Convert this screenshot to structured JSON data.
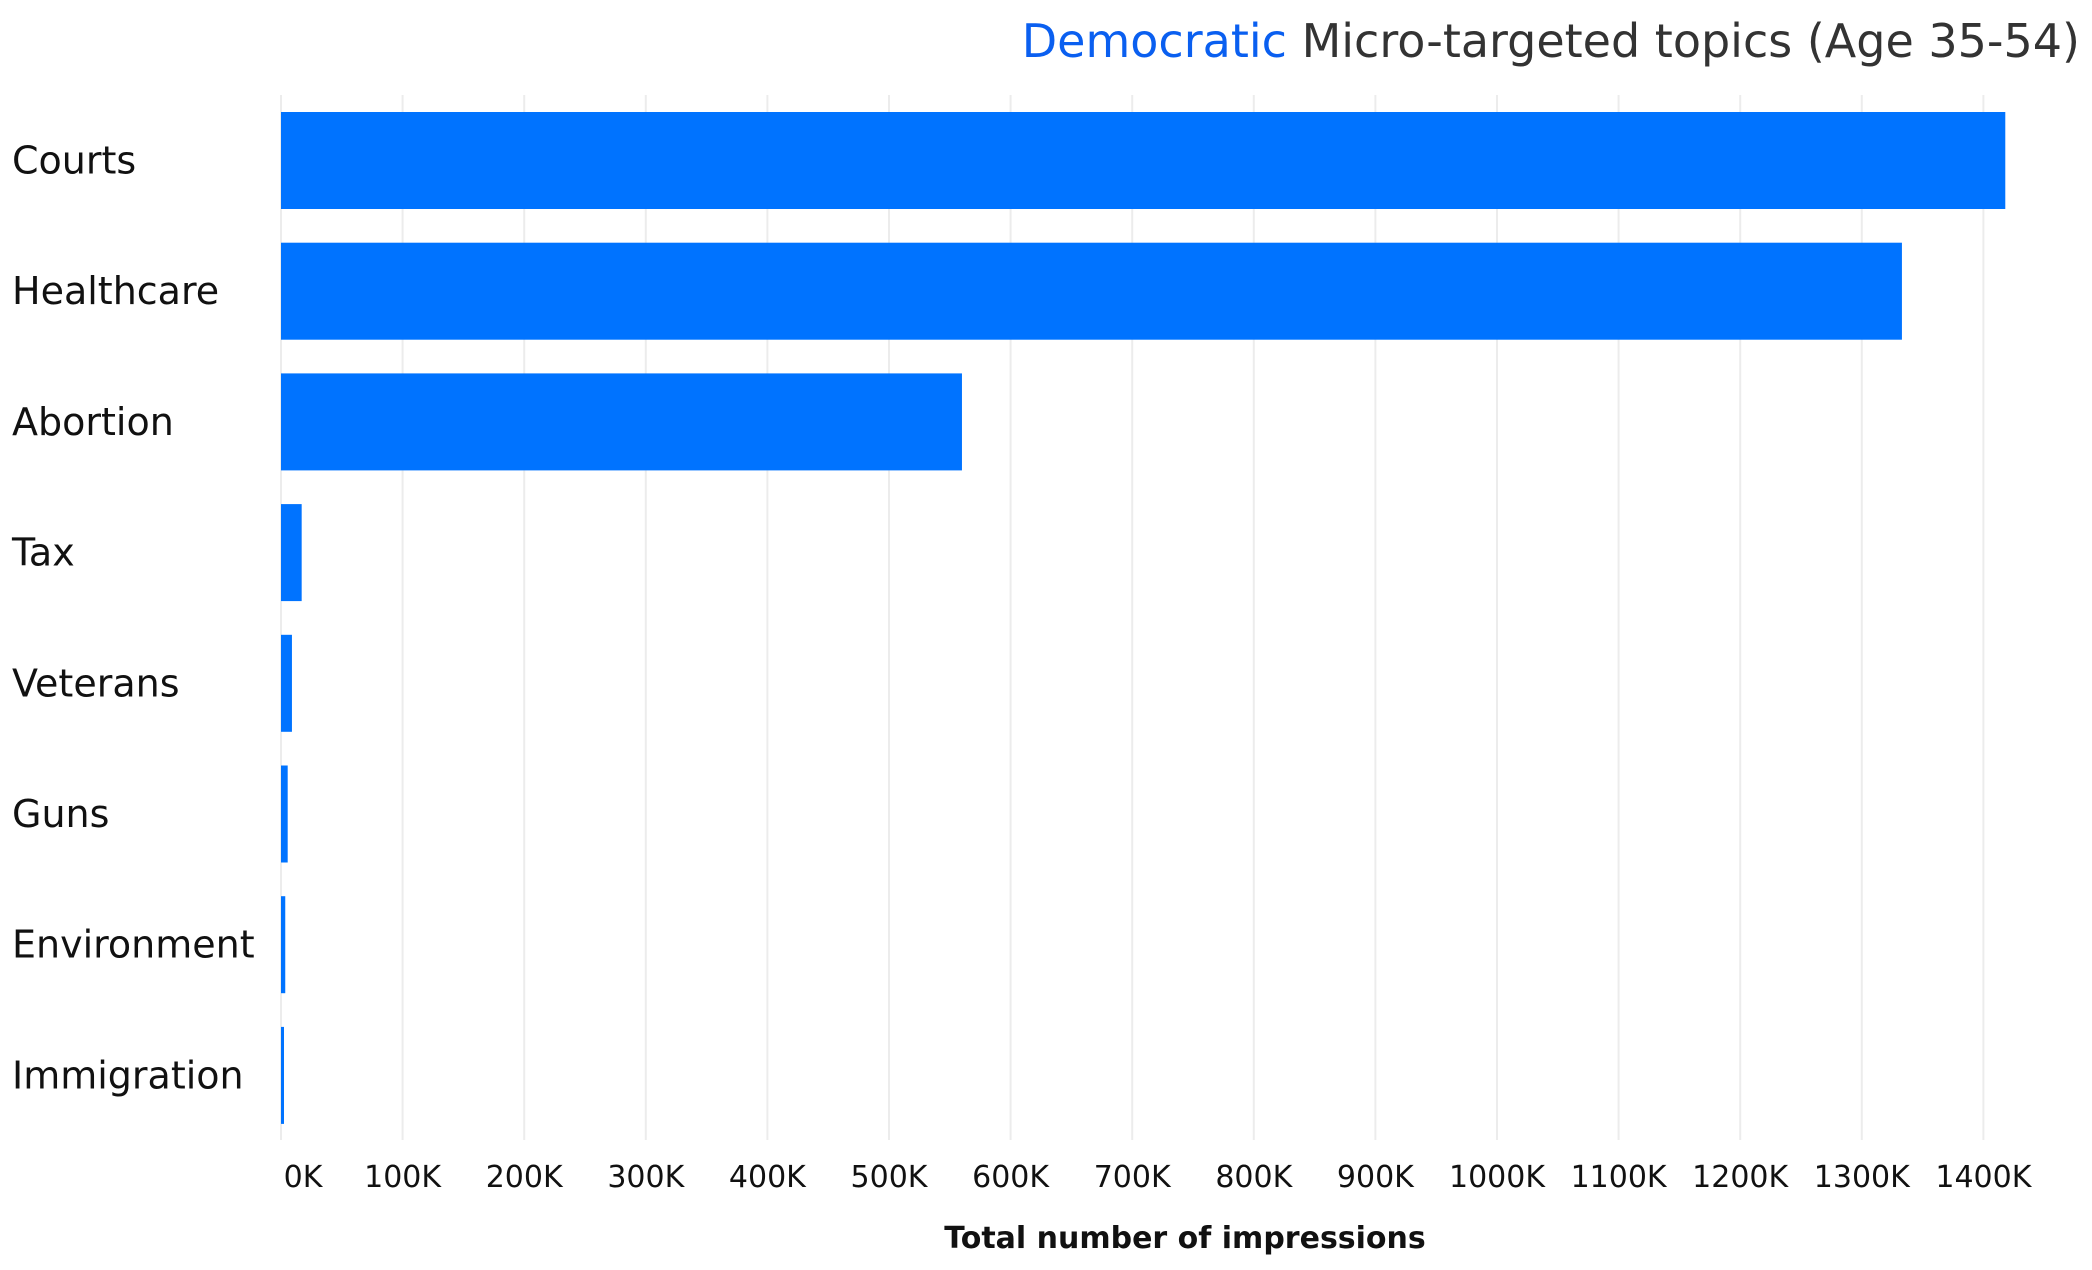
{
  "title": {
    "highlight": "Democratic",
    "rest": "Micro-targeted topics (Age 35-54)"
  },
  "colors": {
    "bar": "#0073ff",
    "title_highlight": "#0a5ff0",
    "grid": "#ececec"
  },
  "chart_data": {
    "type": "bar",
    "orientation": "horizontal",
    "categories": [
      "Courts",
      "Healthcare",
      "Abortion",
      "Tax",
      "Veterans",
      "Guns",
      "Environment",
      "Immigration"
    ],
    "values": [
      1418000,
      1333000,
      560000,
      17000,
      9000,
      5500,
      3500,
      2000
    ],
    "xlabel": "Total number of impressions",
    "ylabel": "",
    "xlim": [
      0,
      1480000
    ],
    "x_ticks": [
      0,
      100000,
      200000,
      300000,
      400000,
      500000,
      600000,
      700000,
      800000,
      900000,
      1000000,
      1100000,
      1200000,
      1300000,
      1400000
    ],
    "x_tick_labels": [
      "0K",
      "100K",
      "200K",
      "300K",
      "400K",
      "500K",
      "600K",
      "700K",
      "800K",
      "900K",
      "1000K",
      "1100K",
      "1200K",
      "1300K",
      "1400K"
    ],
    "grid": true,
    "legend": "none"
  }
}
